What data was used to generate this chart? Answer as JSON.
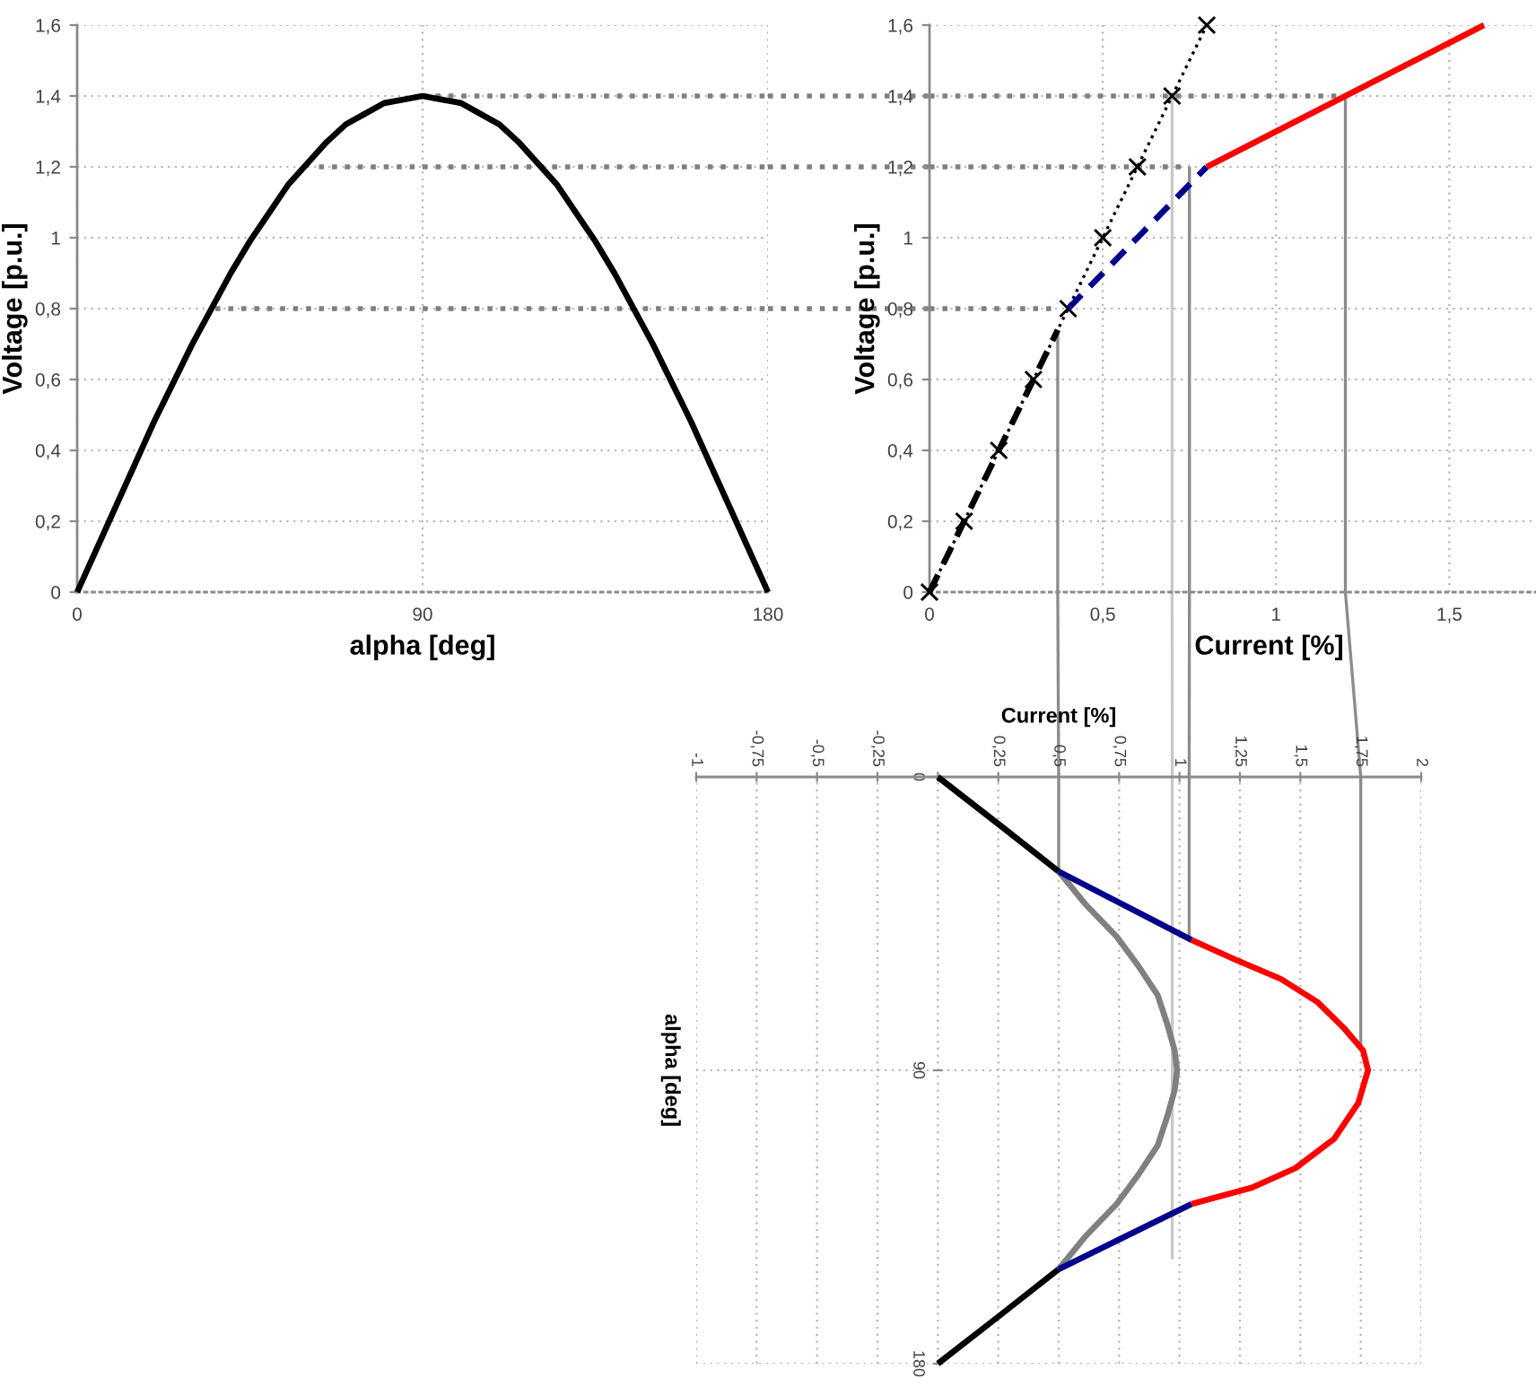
{
  "chart_data": [
    {
      "type": "line",
      "xlabel": "alpha [deg]",
      "ylabel": "Voltage [p.u.]",
      "xlim": [
        0,
        180
      ],
      "ylim": [
        0,
        1.6
      ],
      "xticks": [
        0,
        90,
        180
      ],
      "yticks": [
        0,
        {
          "value": 0.2,
          "label": "0,2"
        },
        {
          "value": 0.4,
          "label": "0,4"
        },
        {
          "value": 0.6,
          "label": "0,6"
        },
        {
          "value": 0.8,
          "label": "0,8"
        },
        1,
        {
          "value": 1.2,
          "label": "1,2"
        },
        {
          "value": 1.4,
          "label": "1,4"
        },
        {
          "value": 1.6,
          "label": "1,6"
        }
      ],
      "grid": true,
      "series": [
        {
          "color": "#7f7f7f",
          "line_style": "dotted",
          "x": [
            36,
            180
          ],
          "values": [
            0.8,
            0.8
          ]
        },
        {
          "color": "#7f7f7f",
          "line_style": "dotted",
          "x": [
            63,
            180
          ],
          "values": [
            1.2,
            1.2
          ]
        },
        {
          "color": "#7f7f7f",
          "line_style": "dotted",
          "x": [
            90,
            180
          ],
          "values": [
            1.4,
            1.4
          ]
        },
        {
          "color": "#000000",
          "x": [
            0,
            5,
            10,
            15,
            20,
            25,
            30,
            35,
            40,
            45,
            50,
            55,
            60,
            65,
            70,
            75,
            80,
            85,
            90,
            95,
            100,
            105,
            110,
            115,
            120,
            125,
            130,
            135,
            140,
            145,
            150,
            155,
            160,
            165,
            170,
            175,
            180
          ],
          "values": [
            0,
            0.12,
            0.24,
            0.36,
            0.48,
            0.59,
            0.7,
            0.8,
            0.9,
            0.99,
            1.07,
            1.15,
            1.21,
            1.27,
            1.32,
            1.35,
            1.38,
            1.39,
            1.4,
            1.39,
            1.38,
            1.35,
            1.32,
            1.27,
            1.21,
            1.15,
            1.07,
            0.99,
            0.9,
            0.8,
            0.7,
            0.59,
            0.48,
            0.36,
            0.24,
            0.12,
            0
          ]
        }
      ]
    },
    {
      "type": "line",
      "xlabel": "Current [%]",
      "ylabel": "Voltage [p.u.]",
      "xlim": [
        0,
        1.75
      ],
      "ylim": [
        0,
        1.6
      ],
      "xticks": [
        0,
        {
          "value": 0.5,
          "label": "0,5"
        },
        1,
        {
          "value": 1.5,
          "label": "1,5"
        }
      ],
      "yticks": [
        0,
        {
          "value": 0.2,
          "label": "0,2"
        },
        {
          "value": 0.4,
          "label": "0,4"
        },
        {
          "value": 0.6,
          "label": "0,6"
        },
        {
          "value": 0.8,
          "label": "0,8"
        },
        1,
        {
          "value": 1.2,
          "label": "1,2"
        },
        {
          "value": 1.4,
          "label": "1,4"
        },
        {
          "value": 1.6,
          "label": "1,6"
        }
      ],
      "grid": true,
      "series": [
        {
          "color": "#7f7f7f",
          "line_style": "dotted",
          "x": [
            0,
            0.37
          ],
          "values": [
            0.8,
            0.8
          ]
        },
        {
          "color": "#7f7f7f",
          "line_style": "dotted",
          "x": [
            0,
            0.75
          ],
          "values": [
            1.2,
            1.2
          ]
        },
        {
          "color": "#7f7f7f",
          "line_style": "dotted",
          "x": [
            0,
            1.2
          ],
          "values": [
            1.4,
            1.4
          ]
        },
        {
          "color": "#8c8c8c",
          "x": [
            0.37,
            0.37
          ],
          "values": [
            0.74,
            0
          ]
        },
        {
          "color": "#c8c8c8",
          "x": [
            0.7,
            0.7
          ],
          "values": [
            1.4,
            0
          ]
        },
        {
          "color": "#8c8c8c",
          "x": [
            0.75,
            0.75
          ],
          "values": [
            1.2,
            0
          ]
        },
        {
          "color": "#8c8c8c",
          "x": [
            1.2,
            1.2
          ],
          "values": [
            1.4,
            0
          ]
        },
        {
          "color": "#000000",
          "line_style": "dotted",
          "marker": "cross",
          "x": [
            0,
            0.1,
            0.2,
            0.3,
            0.4,
            0.5,
            0.6,
            0.7,
            0.8
          ],
          "values": [
            0,
            0.2,
            0.4,
            0.6,
            0.8,
            1.0,
            1.2,
            1.4,
            1.6
          ]
        },
        {
          "color": "#000000",
          "line_style": "dashed",
          "x": [
            0,
            0.37
          ],
          "values": [
            0,
            0.74
          ]
        },
        {
          "color": "#00008b",
          "line_style": "dashed",
          "x": [
            0.4,
            0.8
          ],
          "values": [
            0.8,
            1.2
          ]
        },
        {
          "color": "#ff0000",
          "x": [
            0.8,
            1.6
          ],
          "values": [
            1.2,
            1.6
          ]
        }
      ]
    },
    {
      "type": "line",
      "xlabel": "Current [%]",
      "ylabel": "alpha [deg]",
      "xlim": [
        -1,
        2
      ],
      "ylim": [
        180,
        0
      ],
      "xticks": [
        {
          "value": -1,
          "label": "-1"
        },
        {
          "value": -0.75,
          "label": "-0,75"
        },
        {
          "value": -0.5,
          "label": "-0,5"
        },
        {
          "value": -0.25,
          "label": "-0,25"
        },
        {
          "value": 0,
          "label": null
        },
        {
          "value": 0.25,
          "label": "0,25"
        },
        {
          "value": 0.5,
          "label": "0,5"
        },
        {
          "value": 0.75,
          "label": "0,75"
        },
        1,
        {
          "value": 1.25,
          "label": "1,25"
        },
        {
          "value": 1.5,
          "label": "1,5"
        },
        {
          "value": 1.75,
          "label": "1,75"
        },
        2
      ],
      "yticks": [
        0,
        90,
        180
      ],
      "grid": true,
      "series": [
        {
          "color": "#000000",
          "x": [
            0,
            0.26,
            0.5
          ],
          "values": [
            0,
            15,
            29
          ]
        },
        {
          "color": "#000000",
          "x": [
            0.5,
            0.26,
            0
          ],
          "values": [
            151,
            165,
            180
          ]
        },
        {
          "color": "#808080",
          "x": [
            0.5,
            0.61,
            0.74,
            0.83,
            0.91,
            0.95,
            0.98,
            0.99,
            0.98,
            0.95,
            0.91,
            0.83,
            0.74,
            0.61,
            0.5
          ],
          "values": [
            29,
            39,
            49,
            58,
            67,
            76,
            84,
            90,
            96,
            104,
            113,
            122,
            131,
            141,
            151
          ]
        },
        {
          "color": "#00008b",
          "x": [
            0.5,
            1.05
          ],
          "values": [
            29,
            50
          ]
        },
        {
          "color": "#00008b",
          "x": [
            0.5,
            1.05
          ],
          "values": [
            151,
            131
          ]
        },
        {
          "color": "#ff0000",
          "x": [
            1.05,
            1.23,
            1.42,
            1.57,
            1.68,
            1.76,
            1.78,
            1.74,
            1.64,
            1.48,
            1.3,
            1.05
          ],
          "values": [
            50,
            56,
            62,
            69,
            77,
            84,
            90,
            100,
            111,
            120,
            126,
            131
          ]
        },
        {
          "color": "#8c8c8c",
          "x": [
            0.5,
            0.5
          ],
          "values": [
            0,
            29
          ]
        },
        {
          "color": "#c8c8c8",
          "x": [
            0.97,
            0.97
          ],
          "values": [
            0,
            148
          ]
        },
        {
          "color": "#8c8c8c",
          "x": [
            1.04,
            1.04
          ],
          "values": [
            0,
            50
          ]
        },
        {
          "color": "#8c8c8c",
          "x": [
            1.75,
            1.75
          ],
          "values": [
            0,
            84
          ]
        }
      ]
    }
  ]
}
